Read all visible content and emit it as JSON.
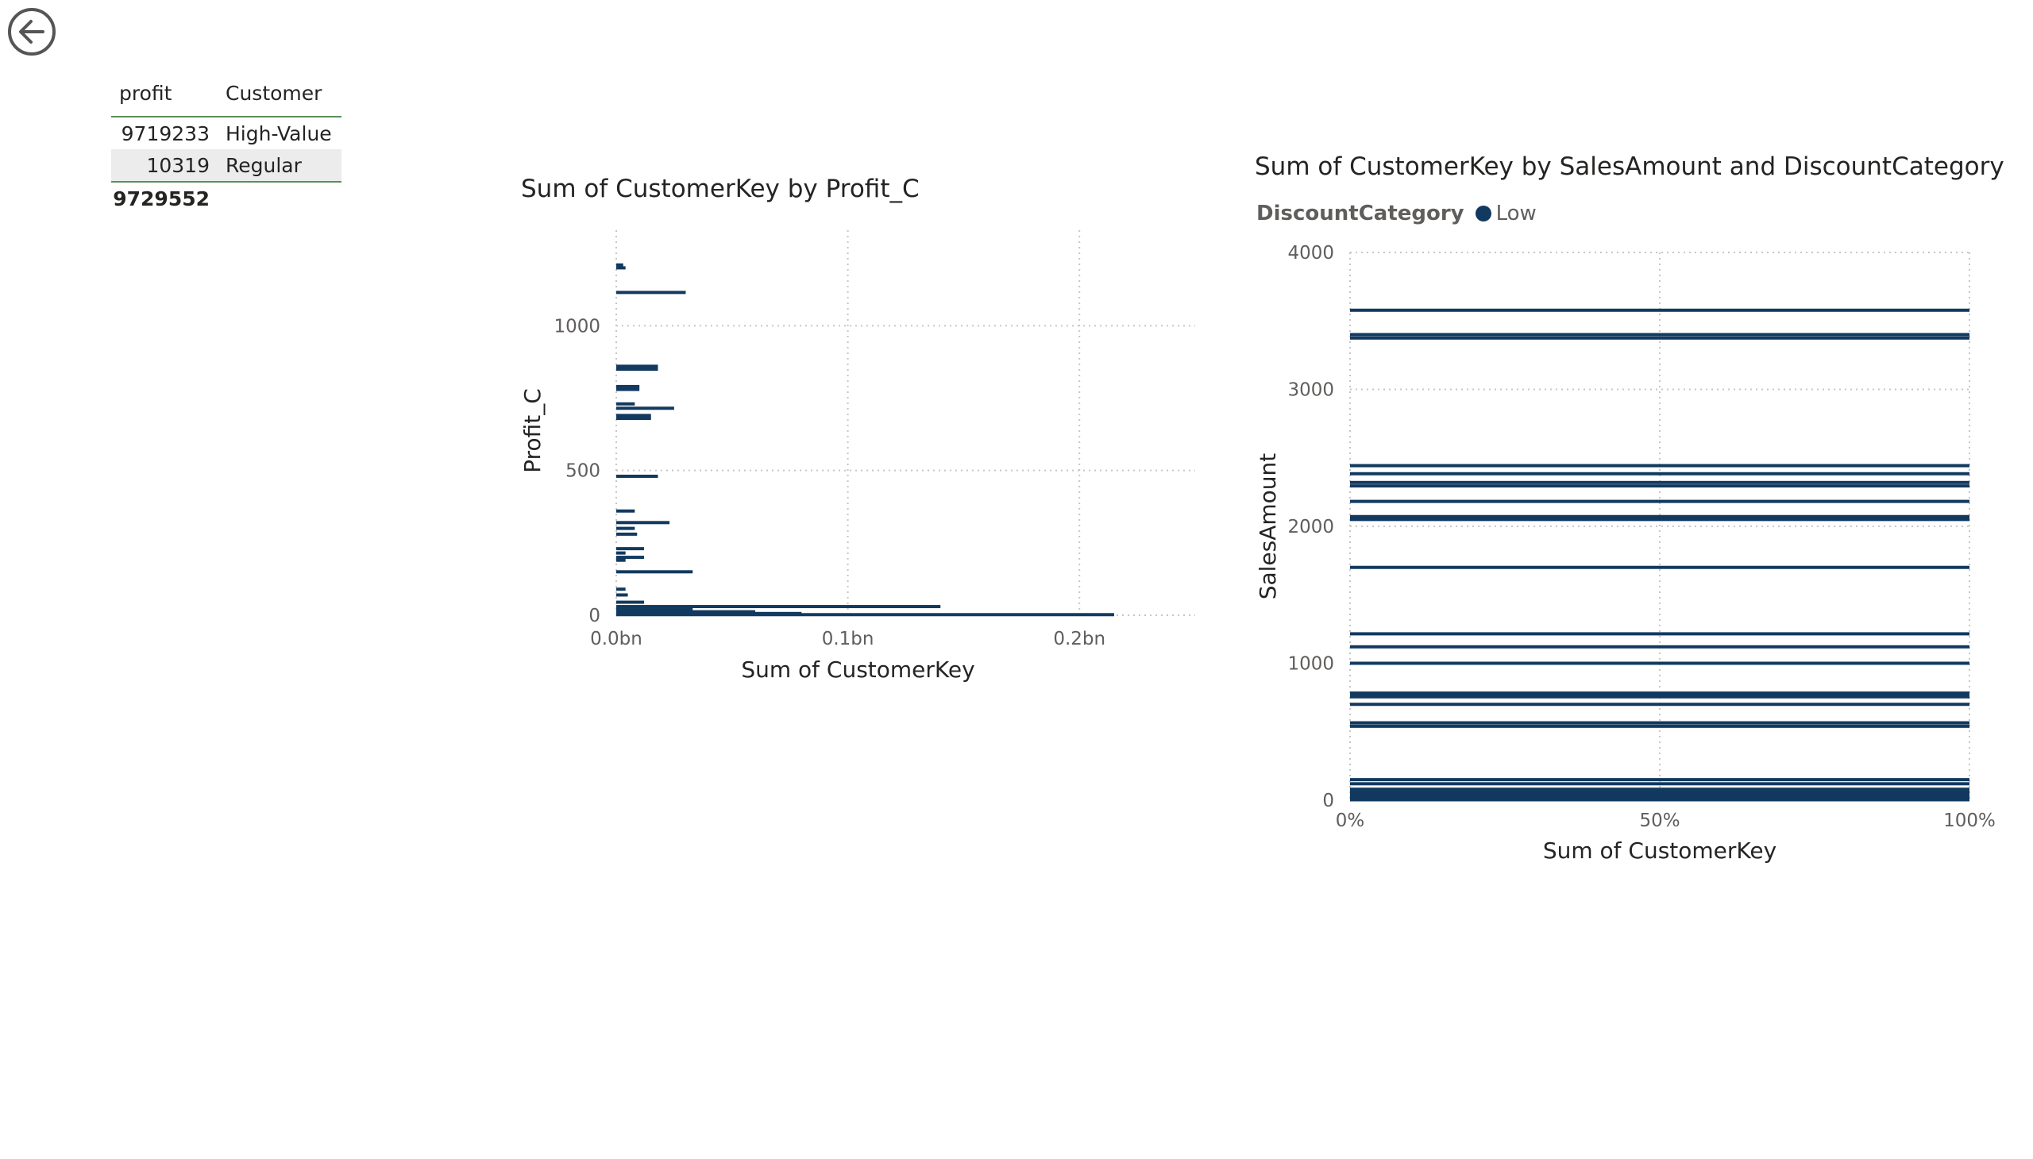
{
  "colors": {
    "bar": "#12395f",
    "grid": "#c8c6c4",
    "axis_text": "#605e5c",
    "table_rule": "#5b8f5b"
  },
  "nav": {
    "back_icon": "back-arrow-icon"
  },
  "table": {
    "headers": [
      "profit",
      "Customer"
    ],
    "rows": [
      {
        "profit": "9719233",
        "customer": "High-Value"
      },
      {
        "profit": "10319",
        "customer": "Regular"
      }
    ],
    "total": "9729552"
  },
  "chart_data": [
    {
      "type": "bar",
      "orientation": "horizontal",
      "title": "Sum of CustomerKey by Profit_C",
      "xlabel": "Sum of CustomerKey",
      "ylabel": "Profit_C",
      "xlim": [
        0,
        250000000
      ],
      "ylim": [
        0,
        1330
      ],
      "x_ticks": [
        "0.0bn",
        "0.1bn",
        "0.2bn"
      ],
      "y_ticks": [
        "0",
        "500",
        "1000"
      ],
      "grid": true,
      "points": [
        {
          "y": 1210,
          "x": 3000000
        },
        {
          "y": 1200,
          "x": 4000000
        },
        {
          "y": 1115,
          "x": 30000000
        },
        {
          "y": 860,
          "x": 18000000
        },
        {
          "y": 850,
          "x": 18000000
        },
        {
          "y": 790,
          "x": 10000000
        },
        {
          "y": 780,
          "x": 10000000
        },
        {
          "y": 730,
          "x": 8000000
        },
        {
          "y": 715,
          "x": 25000000
        },
        {
          "y": 690,
          "x": 15000000
        },
        {
          "y": 680,
          "x": 15000000
        },
        {
          "y": 480,
          "x": 18000000
        },
        {
          "y": 360,
          "x": 8000000
        },
        {
          "y": 320,
          "x": 23000000
        },
        {
          "y": 300,
          "x": 8000000
        },
        {
          "y": 280,
          "x": 9000000
        },
        {
          "y": 230,
          "x": 12000000
        },
        {
          "y": 215,
          "x": 4000000
        },
        {
          "y": 200,
          "x": 12000000
        },
        {
          "y": 190,
          "x": 4000000
        },
        {
          "y": 150,
          "x": 33000000
        },
        {
          "y": 90,
          "x": 4000000
        },
        {
          "y": 70,
          "x": 5000000
        },
        {
          "y": 45,
          "x": 12000000
        },
        {
          "y": 30,
          "x": 140000000
        },
        {
          "y": 20,
          "x": 33000000
        },
        {
          "y": 12,
          "x": 60000000
        },
        {
          "y": 6,
          "x": 80000000
        },
        {
          "y": 2,
          "x": 215000000
        }
      ]
    },
    {
      "type": "bar",
      "orientation": "horizontal",
      "stacking": "100% stacked",
      "title": "Sum of CustomerKey by SalesAmount and DiscountCategory",
      "xlabel": "Sum of CustomerKey",
      "ylabel": "SalesAmount",
      "xlim": [
        0,
        100
      ],
      "ylim": [
        0,
        4000
      ],
      "x_ticks": [
        "0%",
        "50%",
        "100%"
      ],
      "y_ticks": [
        "0",
        "1000",
        "2000",
        "3000",
        "4000"
      ],
      "grid": true,
      "legend": {
        "title": "DiscountCategory",
        "entries": [
          "Low"
        ],
        "placement": "top-left"
      },
      "series": [
        {
          "name": "Low",
          "sales_amounts": [
            3578,
            3400,
            3375,
            2443,
            2384,
            2320,
            2295,
            2182,
            2071,
            2050,
            1700,
            1215,
            1120,
            1000,
            782,
            769,
            755,
            700,
            565,
            540,
            150,
            120,
            80,
            60,
            45,
            35,
            25,
            15,
            8,
            3
          ],
          "values": [
            100,
            100,
            100,
            100,
            100,
            100,
            100,
            100,
            100,
            100,
            100,
            100,
            100,
            100,
            100,
            100,
            100,
            100,
            100,
            100,
            100,
            100,
            100,
            100,
            100,
            100,
            100,
            100,
            100,
            100
          ]
        }
      ]
    }
  ]
}
